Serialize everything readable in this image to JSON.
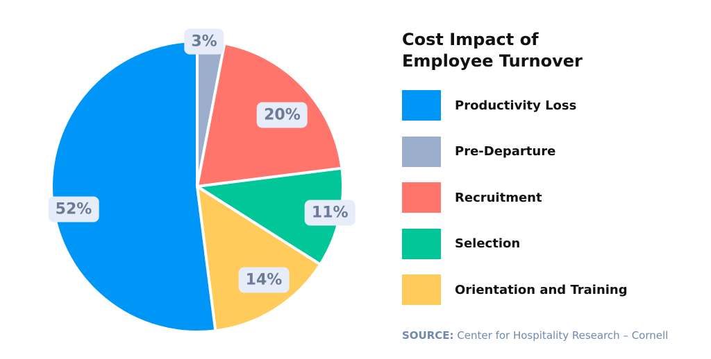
{
  "chart_data": {
    "type": "pie",
    "title": "Cost Impact of Employee Turnover",
    "start": "top-clockwise",
    "legend_position": "right",
    "slices": [
      {
        "name": "Pre-Departure",
        "value": 3,
        "label": "3%",
        "color": "#9bafcc"
      },
      {
        "name": "Recruitment",
        "value": 20,
        "label": "20%",
        "color": "#ff756b"
      },
      {
        "name": "Selection",
        "value": 11,
        "label": "11%",
        "color": "#00c698"
      },
      {
        "name": "Orientation and Training",
        "value": 14,
        "label": "14%",
        "color": "#ffcb5b"
      },
      {
        "name": "Productivity Loss",
        "value": 52,
        "label": "52%",
        "color": "#0096f8"
      }
    ],
    "legend_order": [
      "Productivity Loss",
      "Pre-Departure",
      "Recruitment",
      "Selection",
      "Orientation and Training"
    ]
  },
  "source": {
    "prefix": "SOURCE:",
    "text": "Center for Hospitality Research – Cornell"
  }
}
